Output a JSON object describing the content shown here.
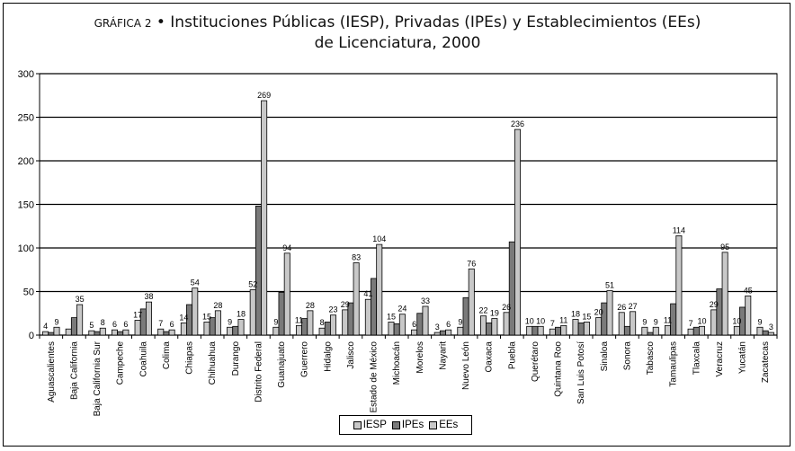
{
  "title": {
    "prefix": "GRÁFICA 2",
    "bullet": "•",
    "line1": "Instituciones Públicas (IESP), Privadas (IPEs) y Establecimientos (EEs)",
    "line2": "de Licenciatura, 2000"
  },
  "chart_data": {
    "type": "bar",
    "ylim": [
      0,
      300
    ],
    "yticks": [
      0,
      50,
      100,
      150,
      200,
      250,
      300
    ],
    "grid": true,
    "legend_position": "bottom",
    "categories": [
      "Aguascalientes",
      "Baja California",
      "Baja California Sur",
      "Campeche",
      "Coahuila",
      "Colima",
      "Chiapas",
      "Chihuahua",
      "Durango",
      "Distrito Federal",
      "Guanajuato",
      "Guerrero",
      "Hidalgo",
      "Jalisco",
      "Estado de México",
      "Michoacán",
      "Morelos",
      "Nayarit",
      "Nuevo León",
      "Oaxaca",
      "Puebla",
      "Querétaro",
      "Quintana Roo",
      "San Luis Potosí",
      "Sinaloa",
      "Sonora",
      "Tabasco",
      "Tamaulipas",
      "Tlaxcala",
      "Veracruz",
      "Yucatán",
      "Zacatecas"
    ],
    "series": [
      {
        "name": "IESP",
        "color": "#c8c8c8",
        "values": [
          4,
          7,
          5,
          6,
          17,
          7,
          14,
          15,
          9,
          52,
          9,
          11,
          8,
          29,
          41,
          15,
          6,
          3,
          9,
          22,
          26,
          10,
          7,
          18,
          20,
          26,
          9,
          11,
          7,
          29,
          10,
          9
        ]
      },
      {
        "name": "IPEs",
        "color": "#7a7a7a",
        "values": [
          3,
          20,
          4,
          4,
          30,
          4,
          35,
          20,
          10,
          148,
          49,
          19,
          15,
          37,
          65,
          13,
          25,
          5,
          43,
          14,
          107,
          10,
          9,
          14,
          37,
          10,
          3,
          36,
          9,
          53,
          32,
          5
        ]
      },
      {
        "name": "EEs",
        "color": "#c8c8c8",
        "values": [
          9,
          35,
          8,
          6,
          38,
          6,
          54,
          28,
          18,
          269,
          94,
          28,
          23,
          83,
          104,
          24,
          33,
          6,
          76,
          19,
          236,
          10,
          11,
          15,
          51,
          27,
          9,
          114,
          10,
          95,
          45,
          3
        ]
      }
    ],
    "labels": [
      {
        "i": 0,
        "s": 0,
        "v": 4
      },
      {
        "i": 0,
        "s": 2,
        "v": 9
      },
      {
        "i": 1,
        "s": 2,
        "v": 35
      },
      {
        "i": 2,
        "s": 0,
        "v": 5
      },
      {
        "i": 2,
        "s": 2,
        "v": 8
      },
      {
        "i": 3,
        "s": 0,
        "v": 6
      },
      {
        "i": 3,
        "s": 2,
        "v": 6
      },
      {
        "i": 4,
        "s": 0,
        "v": 17
      },
      {
        "i": 4,
        "s": 2,
        "v": 38
      },
      {
        "i": 5,
        "s": 0,
        "v": 7
      },
      {
        "i": 5,
        "s": 2,
        "v": 6
      },
      {
        "i": 6,
        "s": 0,
        "v": 14
      },
      {
        "i": 6,
        "s": 2,
        "v": 54
      },
      {
        "i": 7,
        "s": 0,
        "v": 15
      },
      {
        "i": 7,
        "s": 2,
        "v": 28
      },
      {
        "i": 8,
        "s": 0,
        "v": 9
      },
      {
        "i": 8,
        "s": 2,
        "v": 18
      },
      {
        "i": 9,
        "s": 0,
        "v": 52
      },
      {
        "i": 9,
        "s": 2,
        "v": 269
      },
      {
        "i": 10,
        "s": 0,
        "v": 9
      },
      {
        "i": 10,
        "s": 2,
        "v": 94
      },
      {
        "i": 11,
        "s": 0,
        "v": 11
      },
      {
        "i": 11,
        "s": 2,
        "v": 28
      },
      {
        "i": 12,
        "s": 0,
        "v": 8
      },
      {
        "i": 12,
        "s": 2,
        "v": 23
      },
      {
        "i": 13,
        "s": 0,
        "v": 29
      },
      {
        "i": 13,
        "s": 2,
        "v": 83
      },
      {
        "i": 14,
        "s": 0,
        "v": 41
      },
      {
        "i": 14,
        "s": 2,
        "v": 104
      },
      {
        "i": 15,
        "s": 0,
        "v": 15
      },
      {
        "i": 15,
        "s": 2,
        "v": 24
      },
      {
        "i": 16,
        "s": 0,
        "v": 6
      },
      {
        "i": 16,
        "s": 2,
        "v": 33
      },
      {
        "i": 17,
        "s": 0,
        "v": 3
      },
      {
        "i": 17,
        "s": 2,
        "v": 6
      },
      {
        "i": 18,
        "s": 0,
        "v": 9
      },
      {
        "i": 18,
        "s": 2,
        "v": 76
      },
      {
        "i": 19,
        "s": 0,
        "v": 22
      },
      {
        "i": 19,
        "s": 2,
        "v": 19
      },
      {
        "i": 20,
        "s": 0,
        "v": 26
      },
      {
        "i": 20,
        "s": 2,
        "v": 236
      },
      {
        "i": 21,
        "s": 0,
        "v": 10
      },
      {
        "i": 21,
        "s": 2,
        "v": 10
      },
      {
        "i": 22,
        "s": 0,
        "v": 7
      },
      {
        "i": 22,
        "s": 2,
        "v": 11
      },
      {
        "i": 23,
        "s": 0,
        "v": 18
      },
      {
        "i": 23,
        "s": 2,
        "v": 15
      },
      {
        "i": 24,
        "s": 0,
        "v": 20
      },
      {
        "i": 24,
        "s": 2,
        "v": 51
      },
      {
        "i": 25,
        "s": 0,
        "v": 26
      },
      {
        "i": 25,
        "s": 2,
        "v": 27
      },
      {
        "i": 26,
        "s": 0,
        "v": 9
      },
      {
        "i": 26,
        "s": 2,
        "v": 9
      },
      {
        "i": 27,
        "s": 0,
        "v": 11
      },
      {
        "i": 27,
        "s": 2,
        "v": 114
      },
      {
        "i": 28,
        "s": 0,
        "v": 7
      },
      {
        "i": 28,
        "s": 2,
        "v": 10
      },
      {
        "i": 29,
        "s": 0,
        "v": 29
      },
      {
        "i": 29,
        "s": 2,
        "v": 95
      },
      {
        "i": 30,
        "s": 0,
        "v": 10
      },
      {
        "i": 30,
        "s": 2,
        "v": 45
      },
      {
        "i": 31,
        "s": 0,
        "v": 9
      },
      {
        "i": 31,
        "s": 2,
        "v": 3
      }
    ]
  }
}
